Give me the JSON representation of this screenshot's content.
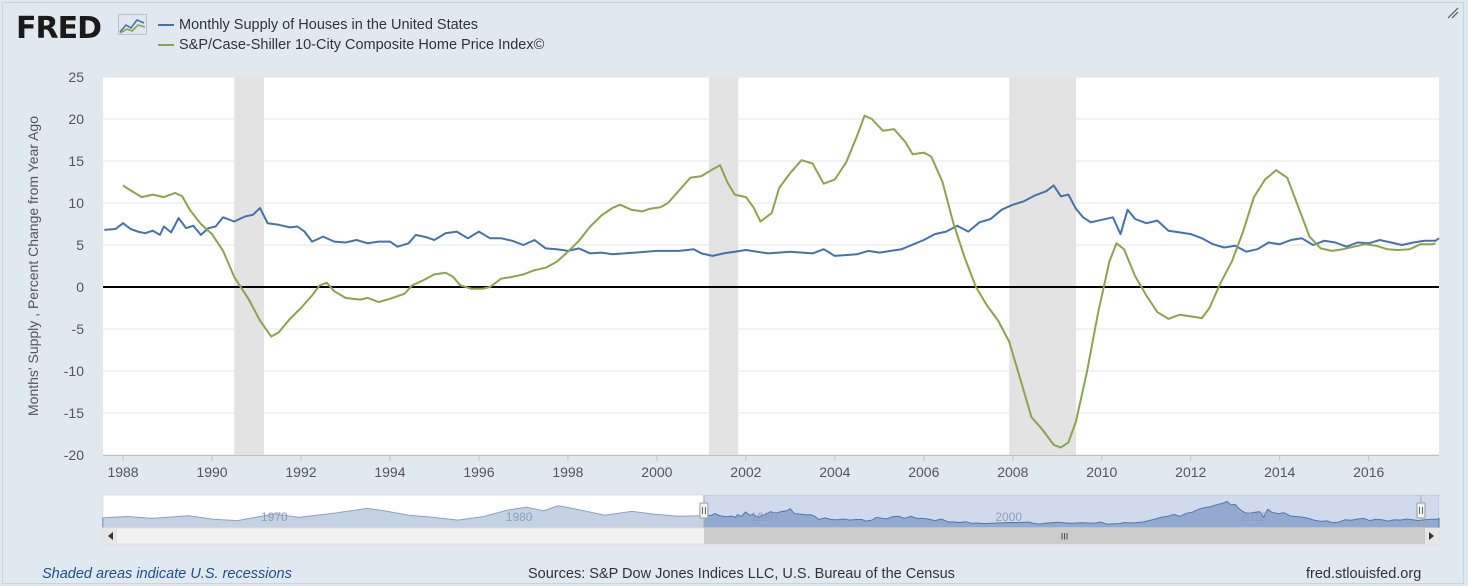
{
  "header": {
    "logo_text": "FRED",
    "logo_mark": "chart-line-icon",
    "corner_icon": "expand-icon"
  },
  "chart_data": {
    "type": "line",
    "ylabel": "Months' Supply , Percent Change from Year Ago",
    "xlim": [
      1987.55,
      2017.58
    ],
    "ylim": [
      -20,
      25
    ],
    "yticks": [
      25,
      20,
      15,
      10,
      5,
      0,
      -5,
      -10,
      -15,
      -20
    ],
    "xticks": [
      "1988",
      "1990",
      "1992",
      "1994",
      "1996",
      "1998",
      "2000",
      "2002",
      "2004",
      "2006",
      "2008",
      "2010",
      "2012",
      "2014",
      "2016"
    ],
    "grid": "horizontal",
    "zero_line": true,
    "legend_position": "top-left",
    "recessions": [
      [
        1990.5,
        1991.17
      ],
      [
        2001.17,
        2001.83
      ],
      [
        2007.92,
        2009.42
      ]
    ],
    "series": [
      {
        "name": "Monthly Supply of Houses in the United States",
        "color": "#4572a7",
        "points": [
          [
            1987.58,
            6.8
          ],
          [
            1987.83,
            6.9
          ],
          [
            1988.0,
            7.6
          ],
          [
            1988.17,
            6.9
          ],
          [
            1988.33,
            6.6
          ],
          [
            1988.5,
            6.4
          ],
          [
            1988.67,
            6.7
          ],
          [
            1988.83,
            6.2
          ],
          [
            1988.92,
            7.2
          ],
          [
            1989.08,
            6.5
          ],
          [
            1989.25,
            8.2
          ],
          [
            1989.42,
            7.0
          ],
          [
            1989.58,
            7.3
          ],
          [
            1989.75,
            6.2
          ],
          [
            1989.92,
            7.0
          ],
          [
            1990.08,
            7.2
          ],
          [
            1990.25,
            8.3
          ],
          [
            1990.5,
            7.8
          ],
          [
            1990.75,
            8.4
          ],
          [
            1990.92,
            8.6
          ],
          [
            1991.08,
            9.4
          ],
          [
            1991.25,
            7.6
          ],
          [
            1991.5,
            7.4
          ],
          [
            1991.75,
            7.1
          ],
          [
            1991.92,
            7.2
          ],
          [
            1992.08,
            6.6
          ],
          [
            1992.25,
            5.4
          ],
          [
            1992.5,
            6.0
          ],
          [
            1992.75,
            5.4
          ],
          [
            1993.0,
            5.3
          ],
          [
            1993.25,
            5.6
          ],
          [
            1993.5,
            5.2
          ],
          [
            1993.75,
            5.4
          ],
          [
            1994.0,
            5.4
          ],
          [
            1994.17,
            4.8
          ],
          [
            1994.42,
            5.2
          ],
          [
            1994.58,
            6.2
          ],
          [
            1994.83,
            5.9
          ],
          [
            1995.0,
            5.6
          ],
          [
            1995.25,
            6.4
          ],
          [
            1995.5,
            6.6
          ],
          [
            1995.75,
            5.8
          ],
          [
            1996.0,
            6.6
          ],
          [
            1996.25,
            5.8
          ],
          [
            1996.5,
            5.8
          ],
          [
            1996.75,
            5.5
          ],
          [
            1997.0,
            5.0
          ],
          [
            1997.25,
            5.6
          ],
          [
            1997.5,
            4.6
          ],
          [
            1997.75,
            4.5
          ],
          [
            1998.0,
            4.3
          ],
          [
            1998.25,
            4.6
          ],
          [
            1998.5,
            4.0
          ],
          [
            1998.75,
            4.1
          ],
          [
            1999.0,
            3.9
          ],
          [
            1999.5,
            4.1
          ],
          [
            2000.0,
            4.3
          ],
          [
            2000.5,
            4.3
          ],
          [
            2000.83,
            4.5
          ],
          [
            2001.0,
            4.0
          ],
          [
            2001.25,
            3.7
          ],
          [
            2001.5,
            4.0
          ],
          [
            2001.75,
            4.2
          ],
          [
            2002.0,
            4.4
          ],
          [
            2002.5,
            4.0
          ],
          [
            2003.0,
            4.2
          ],
          [
            2003.5,
            4.0
          ],
          [
            2003.75,
            4.5
          ],
          [
            2004.0,
            3.7
          ],
          [
            2004.5,
            3.9
          ],
          [
            2004.75,
            4.3
          ],
          [
            2005.0,
            4.1
          ],
          [
            2005.5,
            4.5
          ],
          [
            2006.0,
            5.6
          ],
          [
            2006.25,
            6.3
          ],
          [
            2006.5,
            6.6
          ],
          [
            2006.75,
            7.3
          ],
          [
            2007.0,
            6.6
          ],
          [
            2007.25,
            7.7
          ],
          [
            2007.5,
            8.1
          ],
          [
            2007.75,
            9.2
          ],
          [
            2008.0,
            9.8
          ],
          [
            2008.25,
            10.2
          ],
          [
            2008.5,
            10.9
          ],
          [
            2008.75,
            11.4
          ],
          [
            2008.92,
            12.1
          ],
          [
            2009.08,
            10.8
          ],
          [
            2009.25,
            11.0
          ],
          [
            2009.42,
            9.3
          ],
          [
            2009.58,
            8.3
          ],
          [
            2009.75,
            7.7
          ],
          [
            2010.0,
            8.0
          ],
          [
            2010.25,
            8.3
          ],
          [
            2010.42,
            6.3
          ],
          [
            2010.58,
            9.2
          ],
          [
            2010.75,
            8.1
          ],
          [
            2011.0,
            7.6
          ],
          [
            2011.25,
            7.9
          ],
          [
            2011.5,
            6.7
          ],
          [
            2011.75,
            6.5
          ],
          [
            2012.0,
            6.3
          ],
          [
            2012.25,
            5.8
          ],
          [
            2012.5,
            5.1
          ],
          [
            2012.75,
            4.7
          ],
          [
            2013.0,
            4.9
          ],
          [
            2013.25,
            4.2
          ],
          [
            2013.5,
            4.5
          ],
          [
            2013.75,
            5.3
          ],
          [
            2014.0,
            5.1
          ],
          [
            2014.25,
            5.6
          ],
          [
            2014.5,
            5.8
          ],
          [
            2014.75,
            5.0
          ],
          [
            2015.0,
            5.5
          ],
          [
            2015.25,
            5.3
          ],
          [
            2015.5,
            4.8
          ],
          [
            2015.75,
            5.3
          ],
          [
            2016.0,
            5.2
          ],
          [
            2016.25,
            5.6
          ],
          [
            2016.5,
            5.3
          ],
          [
            2016.75,
            5.0
          ],
          [
            2017.0,
            5.3
          ],
          [
            2017.25,
            5.5
          ],
          [
            2017.5,
            5.5
          ],
          [
            2017.58,
            5.8
          ]
        ]
      },
      {
        "name": "S&P/Case-Shiller 10-City Composite Home Price Index©",
        "color": "#89a54e",
        "points": [
          [
            1988.0,
            12.1
          ],
          [
            1988.17,
            11.5
          ],
          [
            1988.42,
            10.7
          ],
          [
            1988.67,
            11.0
          ],
          [
            1988.92,
            10.7
          ],
          [
            1989.17,
            11.2
          ],
          [
            1989.33,
            10.8
          ],
          [
            1989.5,
            9.2
          ],
          [
            1989.75,
            7.5
          ],
          [
            1990.0,
            6.3
          ],
          [
            1990.25,
            4.3
          ],
          [
            1990.5,
            1.2
          ],
          [
            1990.83,
            -1.5
          ],
          [
            1991.08,
            -4.0
          ],
          [
            1991.33,
            -5.9
          ],
          [
            1991.5,
            -5.4
          ],
          [
            1991.75,
            -3.8
          ],
          [
            1992.0,
            -2.5
          ],
          [
            1992.25,
            -1.0
          ],
          [
            1992.42,
            0.2
          ],
          [
            1992.58,
            0.5
          ],
          [
            1992.75,
            -0.5
          ],
          [
            1993.0,
            -1.3
          ],
          [
            1993.33,
            -1.5
          ],
          [
            1993.5,
            -1.3
          ],
          [
            1993.75,
            -1.8
          ],
          [
            1994.0,
            -1.4
          ],
          [
            1994.33,
            -0.8
          ],
          [
            1994.5,
            0.2
          ],
          [
            1994.75,
            0.8
          ],
          [
            1995.0,
            1.5
          ],
          [
            1995.25,
            1.7
          ],
          [
            1995.42,
            1.2
          ],
          [
            1995.58,
            0.2
          ],
          [
            1995.83,
            -0.2
          ],
          [
            1996.08,
            -0.2
          ],
          [
            1996.25,
            0.0
          ],
          [
            1996.5,
            1.0
          ],
          [
            1996.75,
            1.2
          ],
          [
            1997.0,
            1.5
          ],
          [
            1997.25,
            2.0
          ],
          [
            1997.5,
            2.3
          ],
          [
            1997.75,
            3.0
          ],
          [
            1998.0,
            4.2
          ],
          [
            1998.25,
            5.5
          ],
          [
            1998.5,
            7.2
          ],
          [
            1998.75,
            8.5
          ],
          [
            1999.0,
            9.4
          ],
          [
            1999.17,
            9.8
          ],
          [
            1999.42,
            9.2
          ],
          [
            1999.67,
            9.0
          ],
          [
            1999.83,
            9.3
          ],
          [
            2000.08,
            9.5
          ],
          [
            2000.25,
            10.0
          ],
          [
            2000.5,
            11.5
          ],
          [
            2000.75,
            13.0
          ],
          [
            2001.0,
            13.2
          ],
          [
            2001.25,
            14.0
          ],
          [
            2001.42,
            14.5
          ],
          [
            2001.58,
            12.5
          ],
          [
            2001.75,
            11.0
          ],
          [
            2002.0,
            10.7
          ],
          [
            2002.17,
            9.5
          ],
          [
            2002.33,
            7.8
          ],
          [
            2002.58,
            8.8
          ],
          [
            2002.75,
            11.8
          ],
          [
            2003.0,
            13.6
          ],
          [
            2003.25,
            15.1
          ],
          [
            2003.5,
            14.7
          ],
          [
            2003.75,
            12.3
          ],
          [
            2004.0,
            12.8
          ],
          [
            2004.25,
            14.8
          ],
          [
            2004.5,
            18.0
          ],
          [
            2004.67,
            20.4
          ],
          [
            2004.83,
            20.0
          ],
          [
            2005.08,
            18.6
          ],
          [
            2005.33,
            18.8
          ],
          [
            2005.58,
            17.3
          ],
          [
            2005.75,
            15.8
          ],
          [
            2006.0,
            16.0
          ],
          [
            2006.17,
            15.5
          ],
          [
            2006.42,
            12.5
          ],
          [
            2006.67,
            7.5
          ],
          [
            2006.92,
            3.5
          ],
          [
            2007.17,
            0.0
          ],
          [
            2007.42,
            -2.2
          ],
          [
            2007.67,
            -4.0
          ],
          [
            2007.92,
            -6.5
          ],
          [
            2008.17,
            -11.0
          ],
          [
            2008.42,
            -15.5
          ],
          [
            2008.67,
            -17.0
          ],
          [
            2008.92,
            -18.8
          ],
          [
            2009.08,
            -19.1
          ],
          [
            2009.25,
            -18.5
          ],
          [
            2009.42,
            -16.0
          ],
          [
            2009.67,
            -10.0
          ],
          [
            2009.92,
            -3.0
          ],
          [
            2010.17,
            3.0
          ],
          [
            2010.33,
            5.2
          ],
          [
            2010.5,
            4.5
          ],
          [
            2010.75,
            1.3
          ],
          [
            2011.0,
            -1.0
          ],
          [
            2011.25,
            -3.0
          ],
          [
            2011.5,
            -3.8
          ],
          [
            2011.75,
            -3.3
          ],
          [
            2012.0,
            -3.5
          ],
          [
            2012.25,
            -3.7
          ],
          [
            2012.42,
            -2.5
          ],
          [
            2012.67,
            0.5
          ],
          [
            2012.92,
            3.0
          ],
          [
            2013.17,
            6.5
          ],
          [
            2013.42,
            10.7
          ],
          [
            2013.67,
            12.8
          ],
          [
            2013.92,
            13.9
          ],
          [
            2014.17,
            13.0
          ],
          [
            2014.42,
            9.5
          ],
          [
            2014.67,
            6.0
          ],
          [
            2014.92,
            4.6
          ],
          [
            2015.17,
            4.3
          ],
          [
            2015.42,
            4.5
          ],
          [
            2015.67,
            4.8
          ],
          [
            2015.92,
            5.1
          ],
          [
            2016.17,
            4.9
          ],
          [
            2016.42,
            4.5
          ],
          [
            2016.67,
            4.4
          ],
          [
            2016.92,
            4.5
          ],
          [
            2017.17,
            5.1
          ],
          [
            2017.42,
            5.1
          ],
          [
            2017.5,
            5.2
          ]
        ]
      }
    ]
  },
  "navigator": {
    "labels": [
      "1970",
      "1980",
      "1990",
      "2000",
      "2010"
    ],
    "label_years": [
      1970,
      1980,
      1990,
      2000,
      2010
    ],
    "range_start": 1963.0,
    "range_end": 2017.58,
    "selected_start": 1987.55,
    "selected_end": 2017.58,
    "scroll_left_icon": "arrow-left-icon",
    "scroll_right_icon": "arrow-right-icon",
    "scroll_grip_text": "III"
  },
  "footer": {
    "note": "Shaded areas indicate U.S. recessions",
    "sources": "Sources: S&P Dow Jones Indices LLC, U.S. Bureau of the Census",
    "site": "fred.stlouisfed.org"
  }
}
